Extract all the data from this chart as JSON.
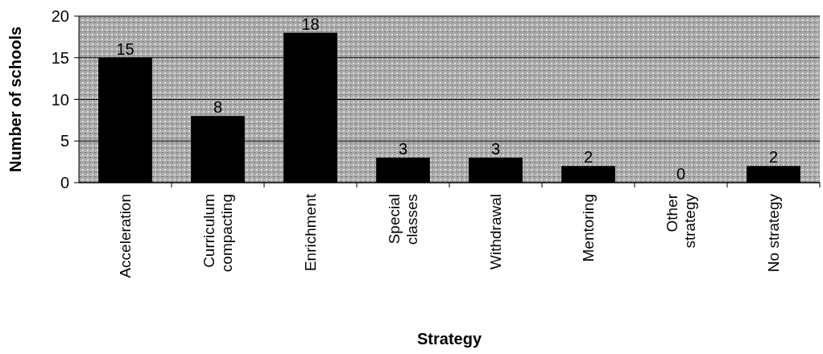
{
  "chart_data": {
    "type": "bar",
    "xlabel": "Strategy",
    "ylabel": "Number of schools",
    "categories": [
      "Acceleration",
      "Curriculum\ncompacting",
      "Enrichment",
      "Special\nclasses",
      "Withdrawal",
      "Mentoring",
      "Other\nstrategy",
      "No strategy"
    ],
    "values": [
      15,
      8,
      18,
      3,
      3,
      2,
      0,
      2
    ],
    "color": "#000000",
    "ylim": [
      0,
      20
    ],
    "yticks": [
      0,
      5,
      10,
      15,
      20
    ],
    "grid": "y",
    "data_labels": true
  }
}
